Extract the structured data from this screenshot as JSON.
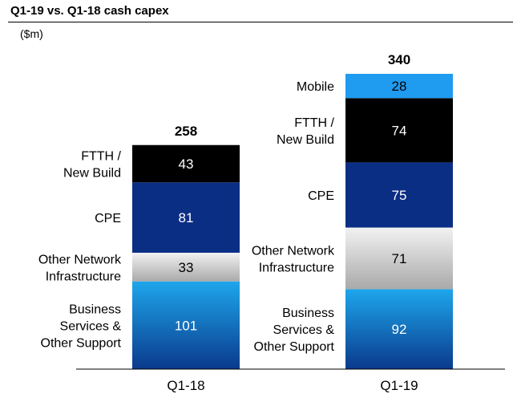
{
  "chart_data": {
    "type": "bar",
    "subtype": "stacked",
    "title": "Q1-19 vs. Q1-18 cash capex",
    "unit_label": "($m)",
    "categories": [
      "Q1-18",
      "Q1-19"
    ],
    "totals": [
      258,
      340
    ],
    "series": [
      {
        "name": "Business Services & Other Support",
        "label_lines": [
          "Business",
          "Services &",
          "Other Support"
        ],
        "values": [
          101,
          92
        ],
        "style": "blue",
        "text_color": "#ffffff"
      },
      {
        "name": "Other Network Infrastructure",
        "label_lines": [
          "Other Network",
          "Infrastructure"
        ],
        "values": [
          33,
          71
        ],
        "style": "grey",
        "text_color": "#000000"
      },
      {
        "name": "CPE",
        "label_lines": [
          "CPE"
        ],
        "values": [
          81,
          75
        ],
        "style": "navy",
        "text_color": "#ffffff"
      },
      {
        "name": "FTTH / New Build",
        "label_lines": [
          "FTTH /",
          "New Build"
        ],
        "values": [
          43,
          74
        ],
        "style": "black",
        "text_color": "#ffffff"
      },
      {
        "name": "Mobile",
        "label_lines": [
          "Mobile"
        ],
        "values": [
          0,
          28
        ],
        "style": "lightblue",
        "text_color": "#000000"
      }
    ],
    "colors": {
      "blue_top": "#1ea6ec",
      "blue_bottom": "#0a3a8c",
      "grey_top": "#f2f2f2",
      "grey_bottom": "#a9a9a9",
      "navy": "#0b2e85",
      "black": "#000000",
      "lightblue": "#1f9bf0"
    },
    "ylim": [
      0,
      340
    ],
    "legend": "inline-left"
  }
}
